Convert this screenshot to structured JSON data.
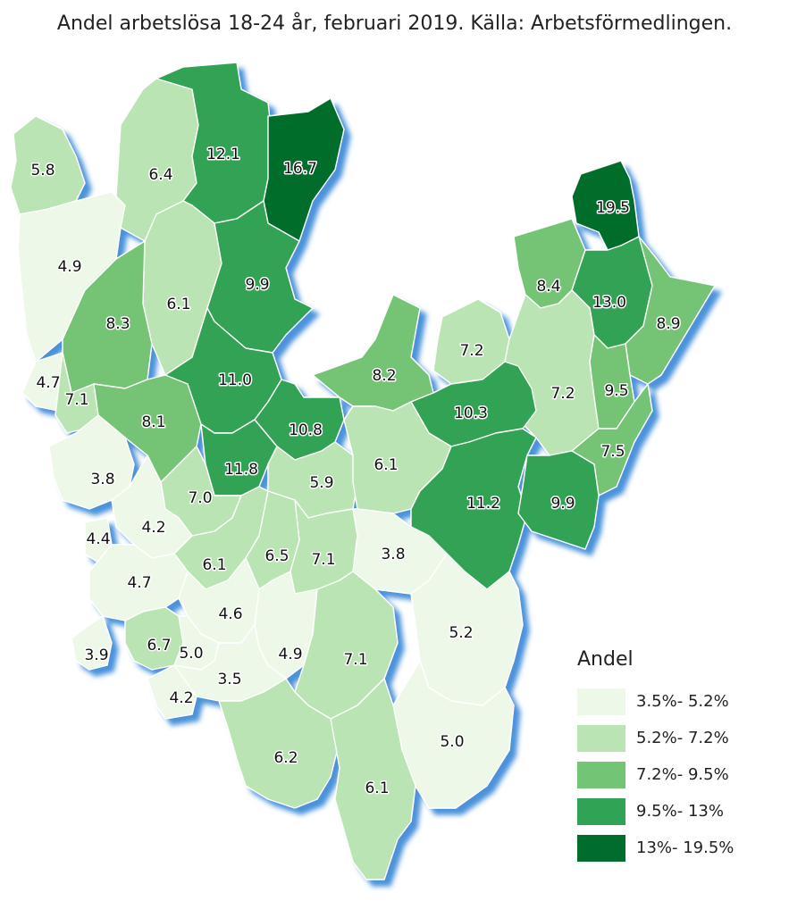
{
  "title": "Andel arbetslösa 18-24 år, februari 2019. Källa: Arbetsförmedlingen.",
  "legend": {
    "title": "Andel",
    "classes": [
      {
        "label": "3.5%- 5.2%",
        "color": "#edf8e9"
      },
      {
        "label": "5.2%- 7.2%",
        "color": "#bae4b3"
      },
      {
        "label": "7.2%- 9.5%",
        "color": "#74c476"
      },
      {
        "label": "9.5%- 13%",
        "color": "#31a354"
      },
      {
        "label": "13%- 19.5%",
        "color": "#006d2c"
      }
    ]
  },
  "regions": [
    {
      "value": "5.8",
      "cls": 1
    },
    {
      "value": "6.4",
      "cls": 1
    },
    {
      "value": "12.1",
      "cls": 3
    },
    {
      "value": "16.7",
      "cls": 4
    },
    {
      "value": "19.5",
      "cls": 4
    },
    {
      "value": "4.9",
      "cls": 0
    },
    {
      "value": "6.1",
      "cls": 1
    },
    {
      "value": "9.9",
      "cls": 3
    },
    {
      "value": "8.4",
      "cls": 2
    },
    {
      "value": "13.0",
      "cls": 3
    },
    {
      "value": "8.9",
      "cls": 2
    },
    {
      "value": "8.3",
      "cls": 2
    },
    {
      "value": "7.2",
      "cls": 1
    },
    {
      "value": "4.7",
      "cls": 0
    },
    {
      "value": "7.1",
      "cls": 1
    },
    {
      "value": "11.0",
      "cls": 3
    },
    {
      "value": "8.2",
      "cls": 2
    },
    {
      "value": "7.2",
      "cls": 1
    },
    {
      "value": "9.5",
      "cls": 2
    },
    {
      "value": "8.1",
      "cls": 2
    },
    {
      "value": "10.3",
      "cls": 3
    },
    {
      "value": "10.8",
      "cls": 3
    },
    {
      "value": "7.5",
      "cls": 2
    },
    {
      "value": "3.8",
      "cls": 0
    },
    {
      "value": "11.8",
      "cls": 3
    },
    {
      "value": "5.9",
      "cls": 1
    },
    {
      "value": "6.1",
      "cls": 1
    },
    {
      "value": "7.0",
      "cls": 1
    },
    {
      "value": "11.2",
      "cls": 3
    },
    {
      "value": "9.9",
      "cls": 3
    },
    {
      "value": "4.2",
      "cls": 0
    },
    {
      "value": "4.4",
      "cls": 0
    },
    {
      "value": "6.1",
      "cls": 1
    },
    {
      "value": "6.5",
      "cls": 1
    },
    {
      "value": "7.1",
      "cls": 1
    },
    {
      "value": "3.8",
      "cls": 0
    },
    {
      "value": "4.7",
      "cls": 0
    },
    {
      "value": "4.6",
      "cls": 0
    },
    {
      "value": "5.2",
      "cls": 0
    },
    {
      "value": "3.9",
      "cls": 0
    },
    {
      "value": "6.7",
      "cls": 1
    },
    {
      "value": "5.0",
      "cls": 0
    },
    {
      "value": "4.9",
      "cls": 0
    },
    {
      "value": "7.1",
      "cls": 1
    },
    {
      "value": "3.5",
      "cls": 0
    },
    {
      "value": "4.2",
      "cls": 0
    },
    {
      "value": "6.2",
      "cls": 1
    },
    {
      "value": "5.0",
      "cls": 0
    },
    {
      "value": "6.1",
      "cls": 1
    }
  ]
}
